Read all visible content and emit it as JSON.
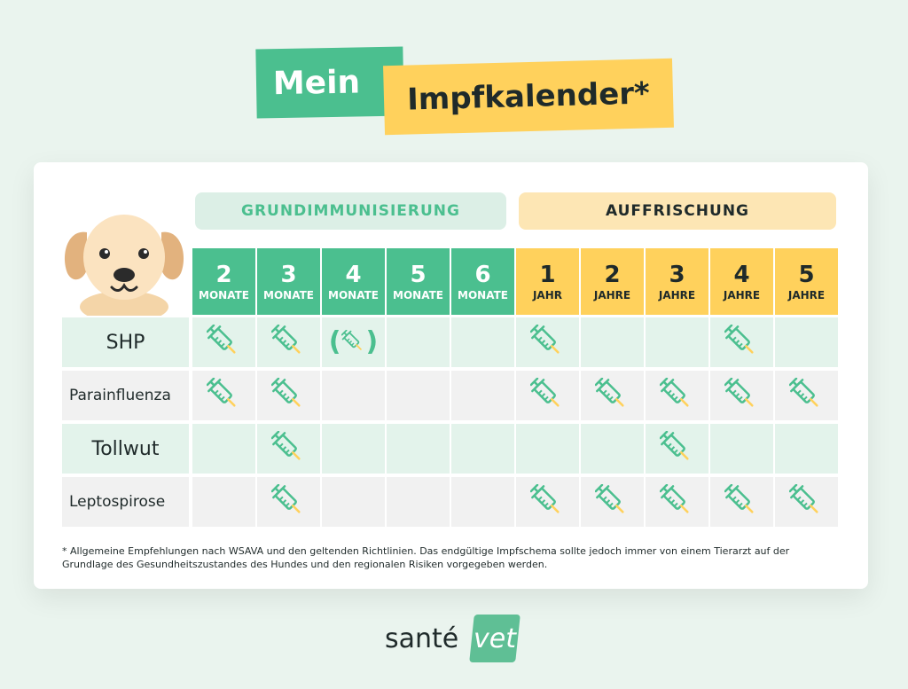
{
  "title": {
    "word1": "Mein",
    "word2": "Impfkalender*"
  },
  "groups": {
    "basic": "GRUNDIMMUNISIERUNG",
    "booster": "AUFFRISCHUNG"
  },
  "columns": [
    {
      "num": "2",
      "unit": "MONATE",
      "group": "basic"
    },
    {
      "num": "3",
      "unit": "MONATE",
      "group": "basic"
    },
    {
      "num": "4",
      "unit": "MONATE",
      "group": "basic"
    },
    {
      "num": "5",
      "unit": "MONATE",
      "group": "basic"
    },
    {
      "num": "6",
      "unit": "MONATE",
      "group": "basic"
    },
    {
      "num": "1",
      "unit": "JAHR",
      "group": "booster"
    },
    {
      "num": "2",
      "unit": "JAHRE",
      "group": "booster"
    },
    {
      "num": "3",
      "unit": "JAHRE",
      "group": "booster"
    },
    {
      "num": "4",
      "unit": "JAHRE",
      "group": "booster"
    },
    {
      "num": "5",
      "unit": "JAHRE",
      "group": "booster"
    }
  ],
  "rows": [
    {
      "label": "SHP",
      "style": "big",
      "shade": "a",
      "marks": [
        "x",
        "x",
        "(x)",
        "",
        "",
        "x",
        "",
        "",
        "x",
        ""
      ]
    },
    {
      "label": "Parainfluenza",
      "style": "small",
      "shade": "b",
      "marks": [
        "x",
        "x",
        "",
        "",
        "",
        "x",
        "x",
        "x",
        "x",
        "x"
      ]
    },
    {
      "label": "Tollwut",
      "style": "big",
      "shade": "a",
      "marks": [
        "",
        "x",
        "",
        "",
        "",
        "",
        "",
        "x",
        "",
        ""
      ]
    },
    {
      "label": "Leptospirose",
      "style": "small",
      "shade": "b",
      "marks": [
        "",
        "x",
        "",
        "",
        "",
        "x",
        "x",
        "x",
        "x",
        "x"
      ]
    }
  ],
  "footnote": "* Allgemeine Empfehlungen nach WSAVA und den geltenden Richtlinien. Das endgültige Impfschema sollte jedoch immer von einem Tierarzt auf der Grundlage des Gesundheitszustandes des Hundes und den regionalen Risiken vorgegeben werden.",
  "logo": {
    "text": "santé",
    "badge": "vet"
  },
  "colors": {
    "green": "#4bbf8f",
    "yellow": "#ffd15c",
    "background": "#eaf4ee"
  },
  "icons": {
    "mark": "syringe-icon",
    "illustration": "dog-icon"
  }
}
